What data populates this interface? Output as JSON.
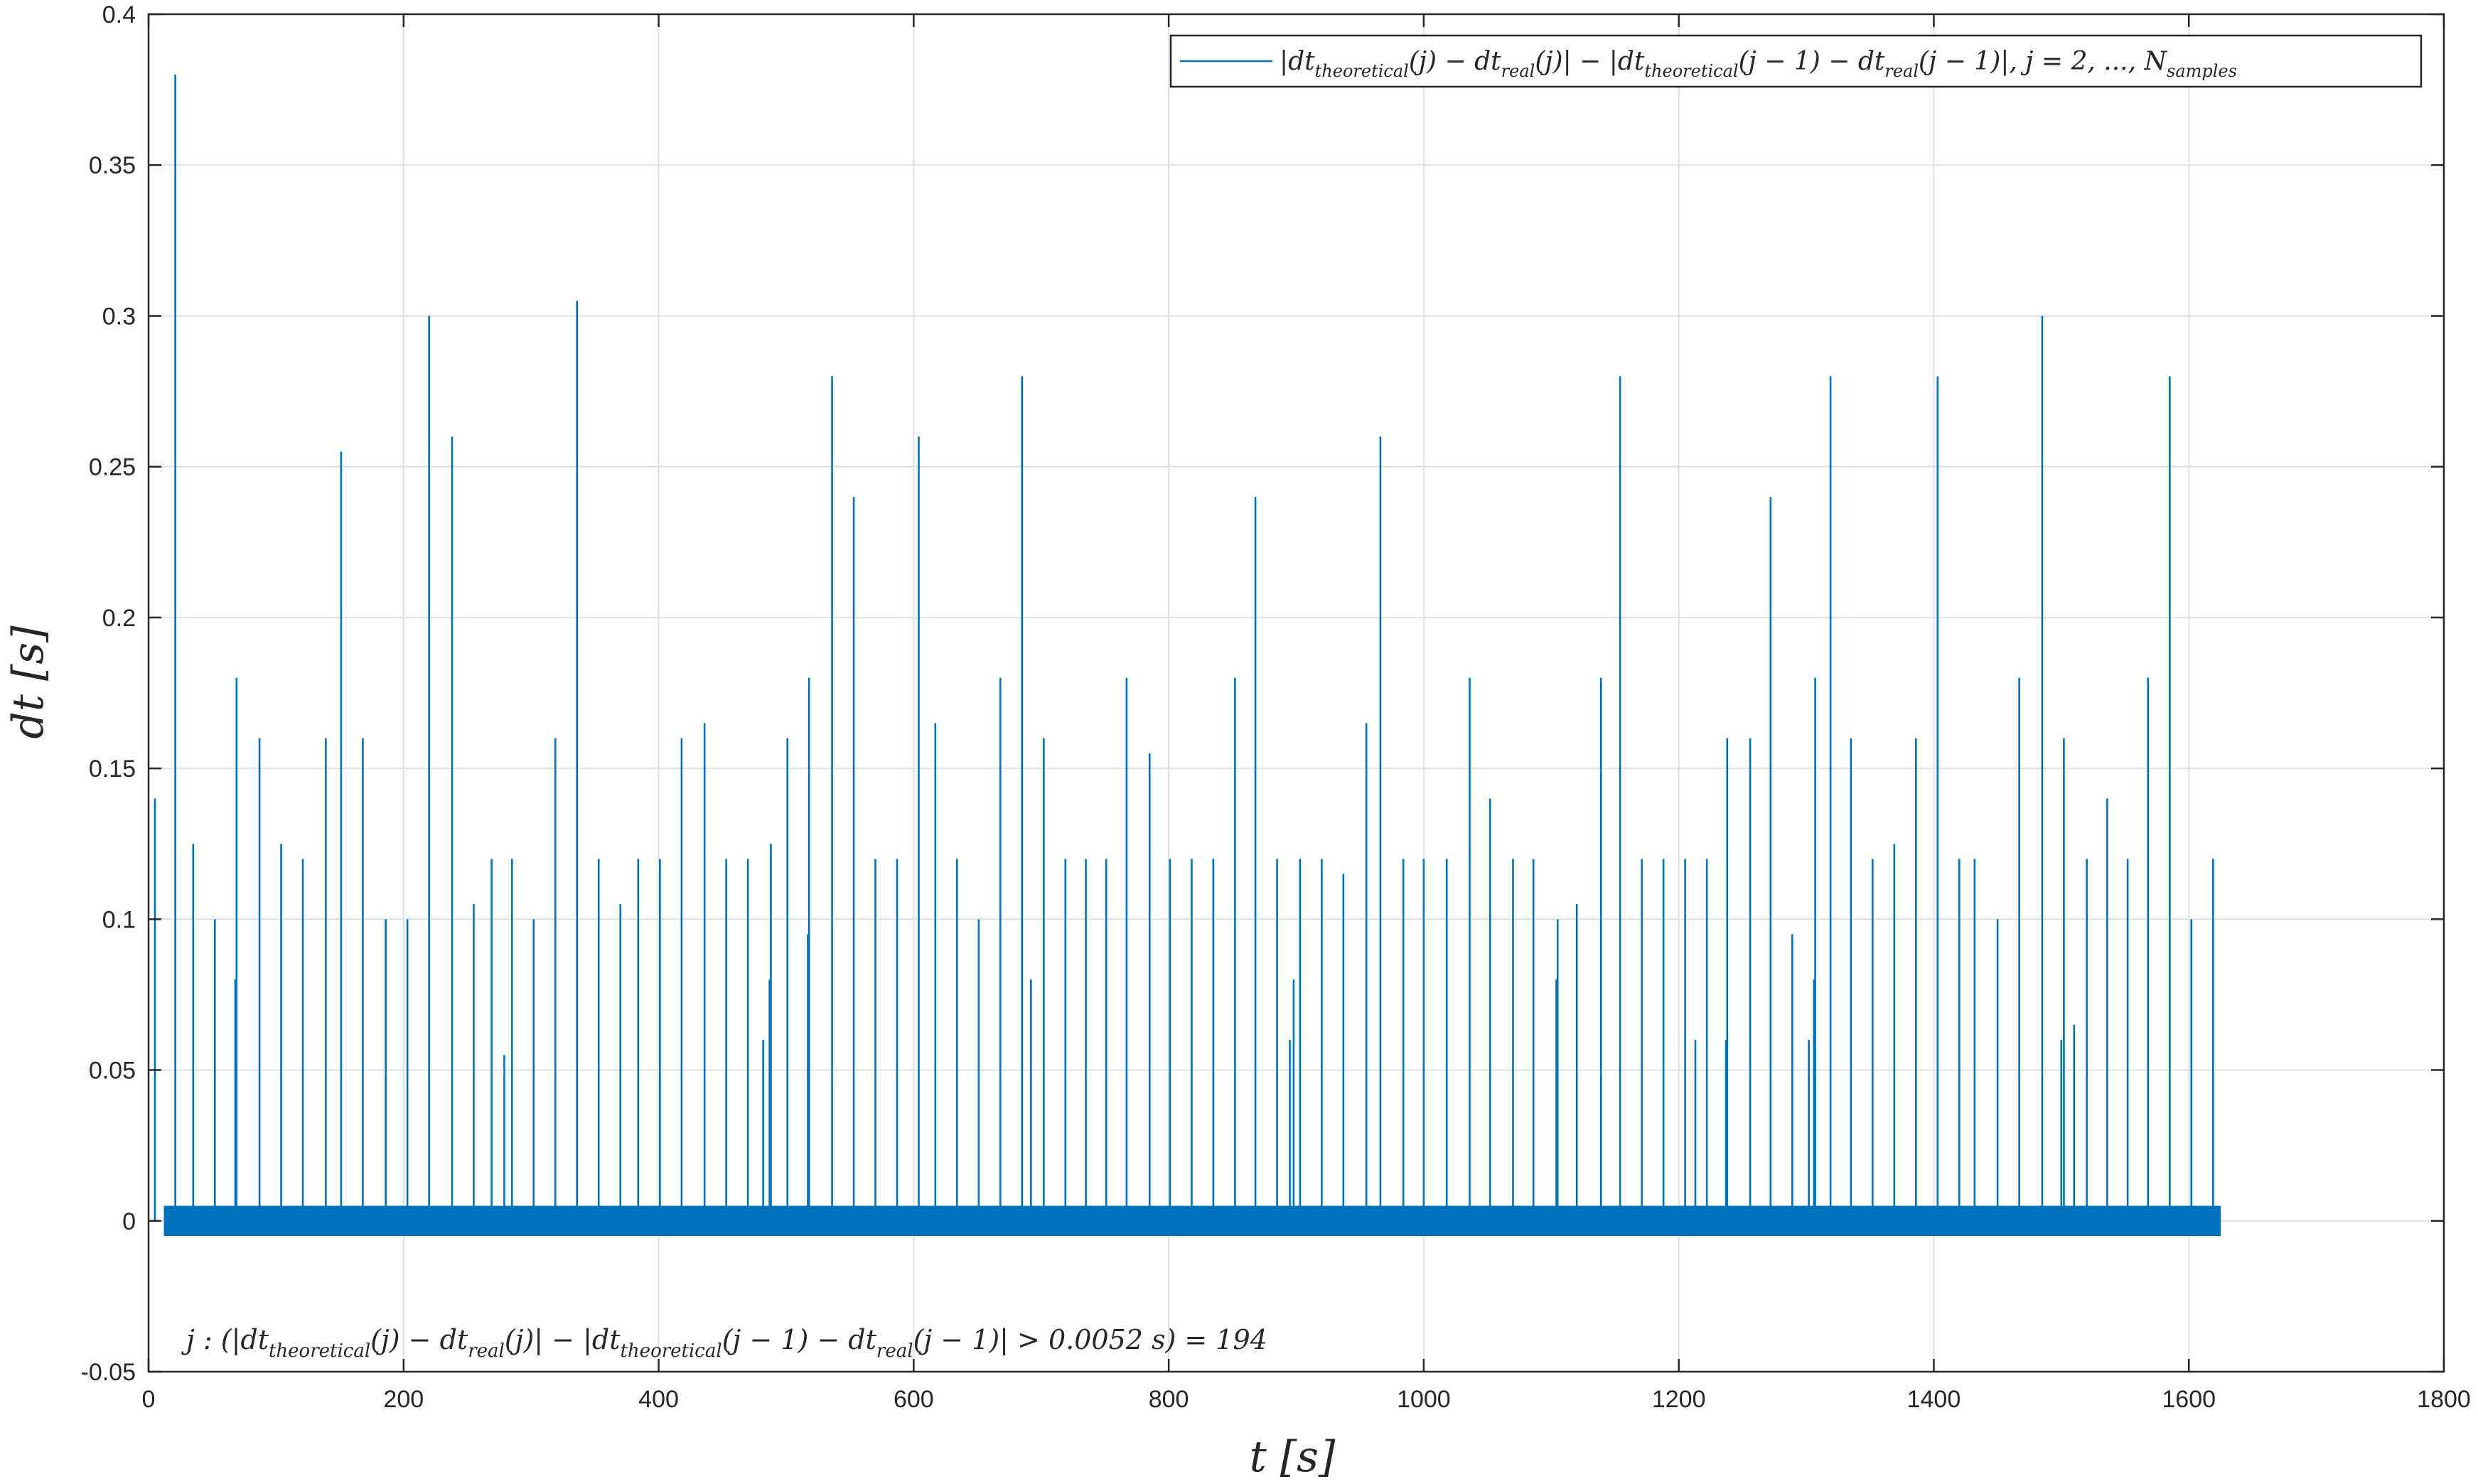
{
  "chart_data": {
    "type": "line",
    "xlabel": "t [s]",
    "ylabel": "dt [s]",
    "xlim": [
      0,
      1800
    ],
    "ylim": [
      -0.05,
      0.4
    ],
    "grid": true,
    "x_ticks": [
      0,
      200,
      400,
      600,
      800,
      1000,
      1200,
      1400,
      1600,
      1800
    ],
    "y_ticks": [
      -0.05,
      0,
      0.05,
      0.1,
      0.15,
      0.2,
      0.25,
      0.3,
      0.35,
      0.4
    ],
    "x_tick_labels": [
      "0",
      "200",
      "400",
      "600",
      "800",
      "1000",
      "1200",
      "1400",
      "1600",
      "1800"
    ],
    "y_tick_labels": [
      "-0.05",
      "0",
      "0.05",
      "0.1",
      "0.15",
      "0.2",
      "0.25",
      "0.3",
      "0.35",
      "0.4"
    ],
    "legend": {
      "location": "top-right",
      "entry": "|dt_theoretical(j) − dt_real(j)| − |dt_theoretical(j − 1) − dt_real(j − 1)|, j = 2, ..., N_samples"
    },
    "annotation": "j : (|dt_theoretical(j) − dt_real(j)| − |dt_theoretical(j − 1) − dt_real(j − 1)| > 0.0052 s) = 194",
    "series": [
      {
        "color": "#0072BD",
        "noise_band": {
          "x_start": 12,
          "x_end": 1625,
          "y_min": -0.005,
          "y_max": 0.005
        },
        "spikes": [
          [
            5,
            0.14
          ],
          [
            21,
            0.38
          ],
          [
            35,
            0.125
          ],
          [
            52,
            0.1
          ],
          [
            68,
            0.08
          ],
          [
            69,
            0.18
          ],
          [
            87,
            0.16
          ],
          [
            104,
            0.125
          ],
          [
            121,
            0.12
          ],
          [
            139,
            0.16
          ],
          [
            151,
            0.255
          ],
          [
            168,
            0.16
          ],
          [
            186,
            0.1
          ],
          [
            203,
            0.1
          ],
          [
            220,
            0.3
          ],
          [
            238,
            0.26
          ],
          [
            255,
            0.105
          ],
          [
            269,
            0.12
          ],
          [
            279,
            0.055
          ],
          [
            285,
            0.12
          ],
          [
            302,
            0.1
          ],
          [
            319,
            0.16
          ],
          [
            336,
            0.305
          ],
          [
            353,
            0.12
          ],
          [
            370,
            0.105
          ],
          [
            384,
            0.12
          ],
          [
            401,
            0.12
          ],
          [
            418,
            0.16
          ],
          [
            436,
            0.165
          ],
          [
            453,
            0.12
          ],
          [
            470,
            0.12
          ],
          [
            482,
            0.06
          ],
          [
            487,
            0.08
          ],
          [
            488,
            0.125
          ],
          [
            501,
            0.16
          ],
          [
            517,
            0.095
          ],
          [
            518,
            0.18
          ],
          [
            536,
            0.28
          ],
          [
            553,
            0.24
          ],
          [
            570,
            0.12
          ],
          [
            587,
            0.12
          ],
          [
            604,
            0.26
          ],
          [
            617,
            0.165
          ],
          [
            634,
            0.12
          ],
          [
            651,
            0.1
          ],
          [
            668,
            0.18
          ],
          [
            685,
            0.28
          ],
          [
            692,
            0.08
          ],
          [
            702,
            0.16
          ],
          [
            719,
            0.12
          ],
          [
            735,
            0.12
          ],
          [
            751,
            0.12
          ],
          [
            767,
            0.18
          ],
          [
            785,
            0.155
          ],
          [
            801,
            0.12
          ],
          [
            818,
            0.12
          ],
          [
            835,
            0.12
          ],
          [
            852,
            0.18
          ],
          [
            868,
            0.24
          ],
          [
            885,
            0.12
          ],
          [
            895,
            0.06
          ],
          [
            898,
            0.08
          ],
          [
            903,
            0.12
          ],
          [
            920,
            0.12
          ],
          [
            937,
            0.115
          ],
          [
            955,
            0.165
          ],
          [
            966,
            0.26
          ],
          [
            984,
            0.12
          ],
          [
            1000,
            0.12
          ],
          [
            1018,
            0.12
          ],
          [
            1036,
            0.18
          ],
          [
            1052,
            0.14
          ],
          [
            1070,
            0.12
          ],
          [
            1086,
            0.12
          ],
          [
            1104,
            0.08
          ],
          [
            1105,
            0.1
          ],
          [
            1120,
            0.105
          ],
          [
            1139,
            0.18
          ],
          [
            1154,
            0.28
          ],
          [
            1171,
            0.12
          ],
          [
            1188,
            0.12
          ],
          [
            1205,
            0.12
          ],
          [
            1213,
            0.06
          ],
          [
            1222,
            0.12
          ],
          [
            1237,
            0.06
          ],
          [
            1238,
            0.16
          ],
          [
            1256,
            0.16
          ],
          [
            1272,
            0.24
          ],
          [
            1289,
            0.095
          ],
          [
            1302,
            0.06
          ],
          [
            1306,
            0.08
          ],
          [
            1307,
            0.18
          ],
          [
            1319,
            0.28
          ],
          [
            1335,
            0.16
          ],
          [
            1352,
            0.12
          ],
          [
            1369,
            0.125
          ],
          [
            1386,
            0.16
          ],
          [
            1403,
            0.28
          ],
          [
            1420,
            0.12
          ],
          [
            1432,
            0.12
          ],
          [
            1450,
            0.1
          ],
          [
            1467,
            0.18
          ],
          [
            1485,
            0.3
          ],
          [
            1500,
            0.06
          ],
          [
            1502,
            0.16
          ],
          [
            1510,
            0.065
          ],
          [
            1520,
            0.12
          ],
          [
            1536,
            0.14
          ],
          [
            1552,
            0.12
          ],
          [
            1568,
            0.18
          ],
          [
            1585,
            0.28
          ],
          [
            1602,
            0.1
          ],
          [
            1619,
            0.12
          ]
        ]
      }
    ]
  }
}
